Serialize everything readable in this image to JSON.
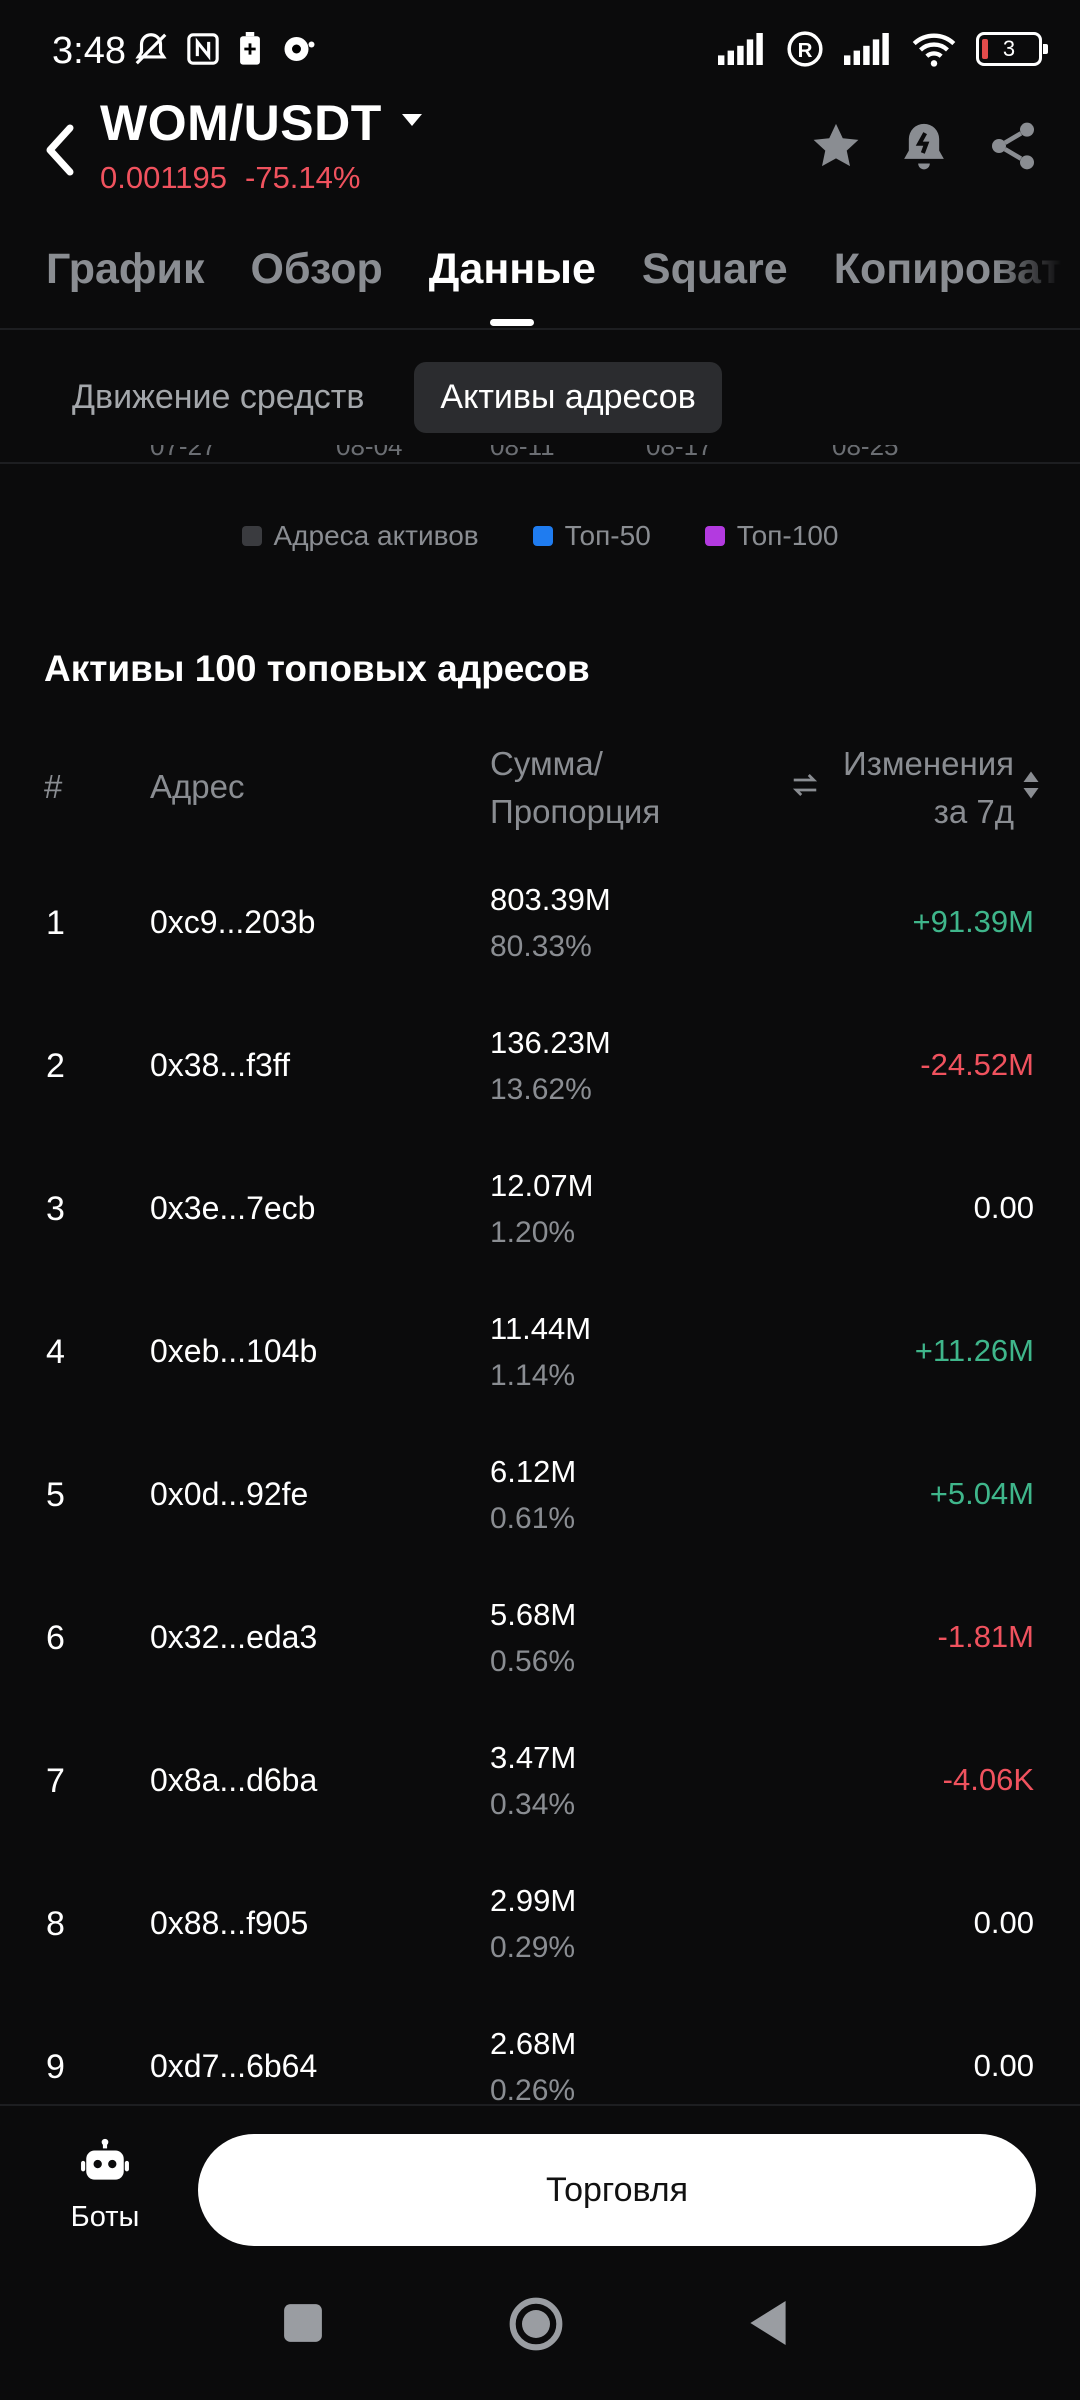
{
  "status_bar": {
    "time": "3:48",
    "battery": "3"
  },
  "header": {
    "pair": "WOM/USDT",
    "price": "0.001195",
    "change": "-75.14%"
  },
  "tabs": [
    {
      "label": "График"
    },
    {
      "label": "Обзор"
    },
    {
      "label": "Данные"
    },
    {
      "label": "Square"
    },
    {
      "label": "Копироват"
    }
  ],
  "subtabs": [
    {
      "label": "Движение средств"
    },
    {
      "label": "Активы адресов"
    }
  ],
  "chart": {
    "x_ticks": [
      "07-27",
      "08-04",
      "08-11",
      "08-17",
      "08-25"
    ],
    "legend": [
      {
        "label": "Адреса активов",
        "color": "#3a3b3f"
      },
      {
        "label": "Топ-50",
        "color": "#1f7cf0"
      },
      {
        "label": "Топ-100",
        "color": "#b33ae0"
      }
    ]
  },
  "section": {
    "title": "Активы 100 топовых адресов",
    "columns": {
      "num": "#",
      "address": "Адрес",
      "amount_line1": "Сумма/",
      "amount_line2": "Пропорция",
      "change_line1": "Изменения",
      "change_line2": "за 7д"
    }
  },
  "rows": [
    {
      "num": "1",
      "address": "0xc9...203b",
      "amount": "803.39M",
      "pct": "80.33%",
      "change": "+91.39M",
      "dir": "pos"
    },
    {
      "num": "2",
      "address": "0x38...f3ff",
      "amount": "136.23M",
      "pct": "13.62%",
      "change": "-24.52M",
      "dir": "neg"
    },
    {
      "num": "3",
      "address": "0x3e...7ecb",
      "amount": "12.07M",
      "pct": "1.20%",
      "change": "0.00",
      "dir": "zero"
    },
    {
      "num": "4",
      "address": "0xeb...104b",
      "amount": "11.44M",
      "pct": "1.14%",
      "change": "+11.26M",
      "dir": "pos"
    },
    {
      "num": "5",
      "address": "0x0d...92fe",
      "amount": "6.12M",
      "pct": "0.61%",
      "change": "+5.04M",
      "dir": "pos"
    },
    {
      "num": "6",
      "address": "0x32...eda3",
      "amount": "5.68M",
      "pct": "0.56%",
      "change": "-1.81M",
      "dir": "neg"
    },
    {
      "num": "7",
      "address": "0x8a...d6ba",
      "amount": "3.47M",
      "pct": "0.34%",
      "change": "-4.06K",
      "dir": "neg"
    },
    {
      "num": "8",
      "address": "0x88...f905",
      "amount": "2.99M",
      "pct": "0.29%",
      "change": "0.00",
      "dir": "zero"
    },
    {
      "num": "9",
      "address": "0xd7...6b64",
      "amount": "2.68M",
      "pct": "0.26%",
      "change": "0.00",
      "dir": "zero"
    }
  ],
  "bottom": {
    "bots_label": "Боты",
    "trade_label": "Торговля"
  }
}
